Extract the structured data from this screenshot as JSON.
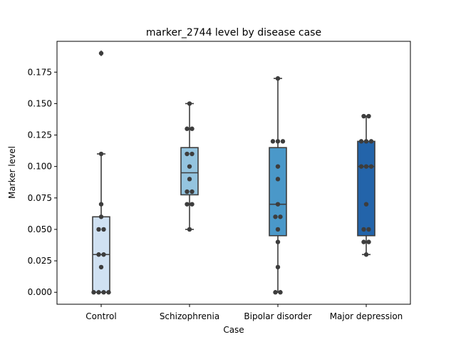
{
  "chart_data": {
    "type": "box",
    "title": "marker_2744 level by disease case",
    "xlabel": "Case",
    "ylabel": "Marker level",
    "ylim": [
      -0.0095,
      0.1995
    ],
    "yticks": [
      0.0,
      0.025,
      0.05,
      0.075,
      0.1,
      0.125,
      0.15,
      0.175
    ],
    "ytick_labels": [
      "0.000",
      "0.025",
      "0.050",
      "0.075",
      "0.100",
      "0.125",
      "0.150",
      "0.175"
    ],
    "grid": false,
    "categories": [
      "Control",
      "Schizophrenia",
      "Bipolar disorder",
      "Major depression"
    ],
    "box_colors": [
      "#d0e1f2",
      "#94c4df",
      "#4a98c9",
      "#2364aa"
    ],
    "boxes": [
      {
        "q1": 0.0,
        "median": 0.03,
        "q3": 0.06,
        "whisker_low": 0.0,
        "whisker_high": 0.11,
        "outliers": [
          0.19
        ]
      },
      {
        "q1": 0.0775,
        "median": 0.095,
        "q3": 0.115,
        "whisker_low": 0.05,
        "whisker_high": 0.15,
        "outliers": []
      },
      {
        "q1": 0.045,
        "median": 0.07,
        "q3": 0.115,
        "whisker_low": 0.0,
        "whisker_high": 0.17,
        "outliers": []
      },
      {
        "q1": 0.045,
        "median": 0.1,
        "q3": 0.12,
        "whisker_low": 0.03,
        "whisker_high": 0.14,
        "outliers": []
      }
    ],
    "points": [
      [
        0.19,
        0.11,
        0.07,
        0.06,
        0.05,
        0.05,
        0.03,
        0.03,
        0.02,
        0.0,
        0.0,
        0.0,
        0.0
      ],
      [
        0.15,
        0.13,
        0.13,
        0.11,
        0.11,
        0.1,
        0.09,
        0.08,
        0.08,
        0.07,
        0.07,
        0.05
      ],
      [
        0.17,
        0.12,
        0.12,
        0.12,
        0.1,
        0.09,
        0.07,
        0.06,
        0.06,
        0.05,
        0.04,
        0.02,
        0.0,
        0.0
      ],
      [
        0.14,
        0.14,
        0.12,
        0.12,
        0.12,
        0.1,
        0.1,
        0.1,
        0.07,
        0.05,
        0.05,
        0.04,
        0.04,
        0.03
      ]
    ],
    "point_color": "#3d3d3d"
  }
}
